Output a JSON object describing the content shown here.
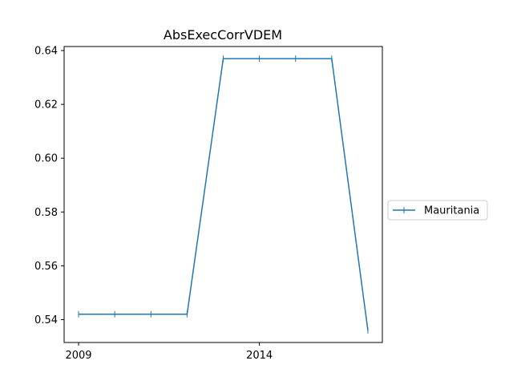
{
  "chart_data": {
    "type": "line",
    "title": "AbsExecCorrVDEM",
    "xlabel": "",
    "ylabel": "",
    "x": [
      2009,
      2010,
      2011,
      2012,
      2013,
      2014,
      2015,
      2016,
      2017
    ],
    "series": [
      {
        "name": "Mauritania",
        "color": "#1f77b4",
        "marker": "vertical-tick",
        "values": [
          0.542,
          0.542,
          0.542,
          0.542,
          0.637,
          0.637,
          0.637,
          0.637,
          0.536
        ]
      }
    ],
    "xlim": [
      2008.6,
      2017.4
    ],
    "ylim": [
      0.5315,
      0.6415
    ],
    "xticks": [
      2009,
      2014
    ],
    "xtick_labels": [
      "2009",
      "2014"
    ],
    "yticks": [
      0.54,
      0.56,
      0.58,
      0.6,
      0.62,
      0.64
    ],
    "ytick_labels": [
      "0.54",
      "0.56",
      "0.58",
      "0.60",
      "0.62",
      "0.64"
    ],
    "grid": false,
    "legend_position": "outside-right"
  }
}
